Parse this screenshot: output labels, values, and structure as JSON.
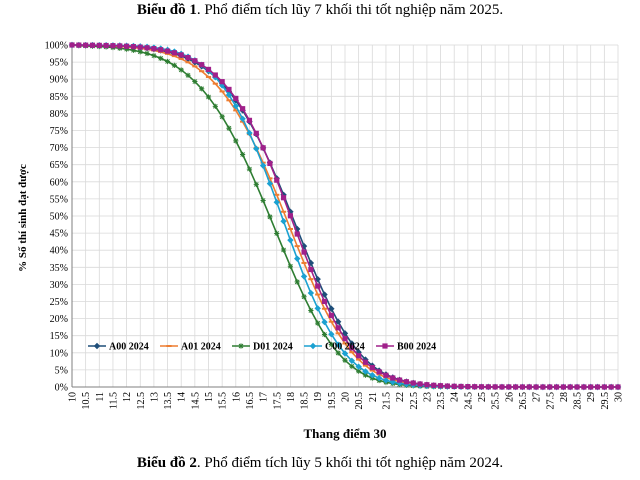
{
  "captions": {
    "top_bold": "Biểu đồ 1",
    "top_rest": ". Phổ điểm tích lũy 7 khối thi tốt nghiệp năm 2025.",
    "bottom_bold": "Biểu đồ 2",
    "bottom_rest": ". Phổ điểm tích lũy 5 khối thi tốt nghiệp năm 2024."
  },
  "chart_data": {
    "type": "line",
    "title": "",
    "xlabel": "Thang điểm 30",
    "ylabel": "% Số thí sinh đạt được",
    "x": [
      10,
      10.25,
      10.5,
      10.75,
      11,
      11.25,
      11.5,
      11.75,
      12,
      12.25,
      12.5,
      12.75,
      13,
      13.25,
      13.5,
      13.75,
      14,
      14.25,
      14.5,
      14.75,
      15,
      15.25,
      15.5,
      15.75,
      16,
      16.25,
      16.5,
      16.75,
      17,
      17.25,
      17.5,
      17.75,
      18,
      18.25,
      18.5,
      18.75,
      19,
      19.25,
      19.5,
      19.75,
      20,
      20.25,
      20.5,
      20.75,
      21,
      21.25,
      21.5,
      21.75,
      22,
      22.25,
      22.5,
      22.75,
      23,
      23.25,
      23.5,
      23.75,
      24,
      24.25,
      24.5,
      24.75,
      25,
      25.25,
      25.5,
      25.75,
      26,
      26.25,
      26.5,
      26.75,
      27,
      27.25,
      27.5,
      27.75,
      28,
      28.25,
      28.5,
      28.75,
      29,
      29.25,
      29.5,
      29.75,
      30
    ],
    "x_tick_labels": [
      "10",
      "10.5",
      "11",
      "11.5",
      "12",
      "12.5",
      "13",
      "13.5",
      "14",
      "14.5",
      "15",
      "15.5",
      "16",
      "16.5",
      "17",
      "17.5",
      "18",
      "18.5",
      "19",
      "19.5",
      "20",
      "20.5",
      "21",
      "21.5",
      "22",
      "22.5",
      "23",
      "23.5",
      "24",
      "24.5",
      "25",
      "25.5",
      "26",
      "26.5",
      "27",
      "27.5",
      "28",
      "28.5",
      "29",
      "29.5",
      "30"
    ],
    "y_tick_labels": [
      "0%",
      "5%",
      "10%",
      "15%",
      "20%",
      "25%",
      "30%",
      "35%",
      "40%",
      "45%",
      "50%",
      "55%",
      "60%",
      "65%",
      "70%",
      "75%",
      "80%",
      "85%",
      "90%",
      "95%",
      "100%"
    ],
    "xlim": [
      10,
      30
    ],
    "ylim": [
      0,
      100
    ],
    "grid": true,
    "legend_position": "lower-left",
    "series": [
      {
        "name": "A00 2024",
        "color": "#1f4e79",
        "marker": "diamond",
        "values": [
          100,
          99.97,
          99.95,
          99.92,
          99.88,
          99.83,
          99.77,
          99.69,
          99.59,
          99.45,
          99.28,
          99.06,
          98.78,
          98.43,
          97.99,
          97.44,
          96.77,
          95.95,
          94.95,
          93.75,
          92.33,
          90.65,
          88.69,
          86.42,
          83.82,
          80.88,
          77.58,
          73.92,
          69.92,
          65.6,
          61.01,
          56.2,
          51.24,
          46.21,
          41.19,
          36.27,
          31.53,
          27.04,
          22.88,
          19.09,
          15.69,
          12.72,
          10.17,
          8.02,
          6.25,
          4.82,
          3.68,
          2.79,
          2.1,
          1.57,
          1.17,
          0.87,
          0.64,
          0.47,
          0.35,
          0.25,
          0.19,
          0.14,
          0.1,
          0.07,
          0.05,
          0.04,
          0.03,
          0.02,
          0.01,
          0.01,
          0.01,
          0,
          0,
          0,
          0,
          0,
          0,
          0,
          0,
          0,
          0,
          0,
          0,
          0,
          0
        ]
      },
      {
        "name": "A01 2024",
        "color": "#ed7d31",
        "marker": "dash",
        "values": [
          100,
          99.96,
          99.93,
          99.89,
          99.84,
          99.77,
          99.68,
          99.58,
          99.44,
          99.26,
          99.04,
          98.76,
          98.41,
          97.97,
          97.42,
          96.75,
          95.93,
          94.94,
          93.75,
          92.33,
          90.65,
          88.69,
          86.42,
          83.82,
          80.88,
          77.58,
          73.92,
          69.92,
          65.6,
          61.01,
          56.2,
          51.24,
          46.21,
          41.19,
          36.27,
          31.53,
          27.04,
          22.88,
          19.09,
          15.69,
          12.72,
          10.17,
          8.02,
          6.25,
          4.82,
          3.68,
          2.79,
          2.1,
          1.57,
          1.17,
          0.87,
          0.64,
          0.47,
          0.35,
          0.25,
          0.19,
          0.14,
          0.1,
          0.07,
          0.05,
          0.04,
          0.03,
          0.02,
          0.01,
          0.01,
          0.01,
          0,
          0,
          0,
          0,
          0,
          0,
          0,
          0,
          0,
          0,
          0,
          0,
          0,
          0,
          0
        ]
      },
      {
        "name": "D01 2024",
        "color": "#2e7d32",
        "marker": "star",
        "values": [
          100,
          99.8,
          99.74,
          99.66,
          99.56,
          99.43,
          99.26,
          99.05,
          98.78,
          98.45,
          98.03,
          97.51,
          96.88,
          96.1,
          95.17,
          94.04,
          92.71,
          91.14,
          89.31,
          87.2,
          84.79,
          82.07,
          79.03,
          75.66,
          71.97,
          67.98,
          63.72,
          59.23,
          54.55,
          49.75,
          44.9,
          40.06,
          35.31,
          30.73,
          26.4,
          22.36,
          18.67,
          15.36,
          12.44,
          9.93,
          7.81,
          6.05,
          4.62,
          3.48,
          2.6,
          1.91,
          1.39,
          1,
          0.72,
          0.51,
          0.36,
          0.25,
          0.17,
          0.12,
          0.08,
          0.05,
          0.03,
          0.02,
          0.01,
          0.01,
          0,
          0,
          0,
          0,
          0,
          0,
          0,
          0,
          0,
          0,
          0,
          0,
          0,
          0,
          0,
          0,
          0,
          0,
          0,
          0,
          0
        ]
      },
      {
        "name": "C00 2024",
        "color": "#1ba1d1",
        "marker": "diamond",
        "values": [
          100,
          99.99,
          99.98,
          99.97,
          99.95,
          99.93,
          99.9,
          99.86,
          99.8,
          99.72,
          99.61,
          99.46,
          99.25,
          98.97,
          98.59,
          98.09,
          97.43,
          96.59,
          95.52,
          94.19,
          92.55,
          90.56,
          88.19,
          85.39,
          82.14,
          78.43,
          74.26,
          69.68,
          64.73,
          59.48,
          54.03,
          48.47,
          42.93,
          37.52,
          32.33,
          27.47,
          23,
          18.98,
          15.44,
          12.38,
          9.8,
          7.67,
          5.94,
          4.55,
          3.46,
          2.61,
          1.95,
          1.46,
          1.08,
          0.8,
          0.59,
          0.43,
          0.32,
          0.23,
          0.17,
          0.12,
          0.09,
          0.06,
          0.05,
          0.03,
          0.02,
          0.02,
          0.01,
          0.01,
          0.01,
          0,
          0,
          0,
          0,
          0,
          0,
          0,
          0,
          0,
          0,
          0,
          0,
          0,
          0,
          0,
          0
        ]
      },
      {
        "name": "B00 2024",
        "color": "#a0208a",
        "marker": "square",
        "values": [
          100,
          99.97,
          99.95,
          99.93,
          99.89,
          99.85,
          99.8,
          99.73,
          99.64,
          99.52,
          99.37,
          99.18,
          98.93,
          98.61,
          98.22,
          97.72,
          97.1,
          96.33,
          95.39,
          94.24,
          92.86,
          91.22,
          89.28,
          87.01,
          84.38,
          81.37,
          77.96,
          74.15,
          69.94,
          65.37,
          60.48,
          55.35,
          50.06,
          44.73,
          39.45,
          34.35,
          29.51,
          25.02,
          20.94,
          17.31,
          14.14,
          11.42,
          9.13,
          7.23,
          5.68,
          4.43,
          3.43,
          2.64,
          2.02,
          1.53,
          1.16,
          0.87,
          0.66,
          0.49,
          0.37,
          0.27,
          0.2,
          0.15,
          0.11,
          0.08,
          0.06,
          0.04,
          0.03,
          0.02,
          0.02,
          0.01,
          0.01,
          0.01,
          0,
          0,
          0,
          0,
          0,
          0,
          0,
          0,
          0,
          0,
          0,
          0,
          0
        ]
      }
    ]
  }
}
